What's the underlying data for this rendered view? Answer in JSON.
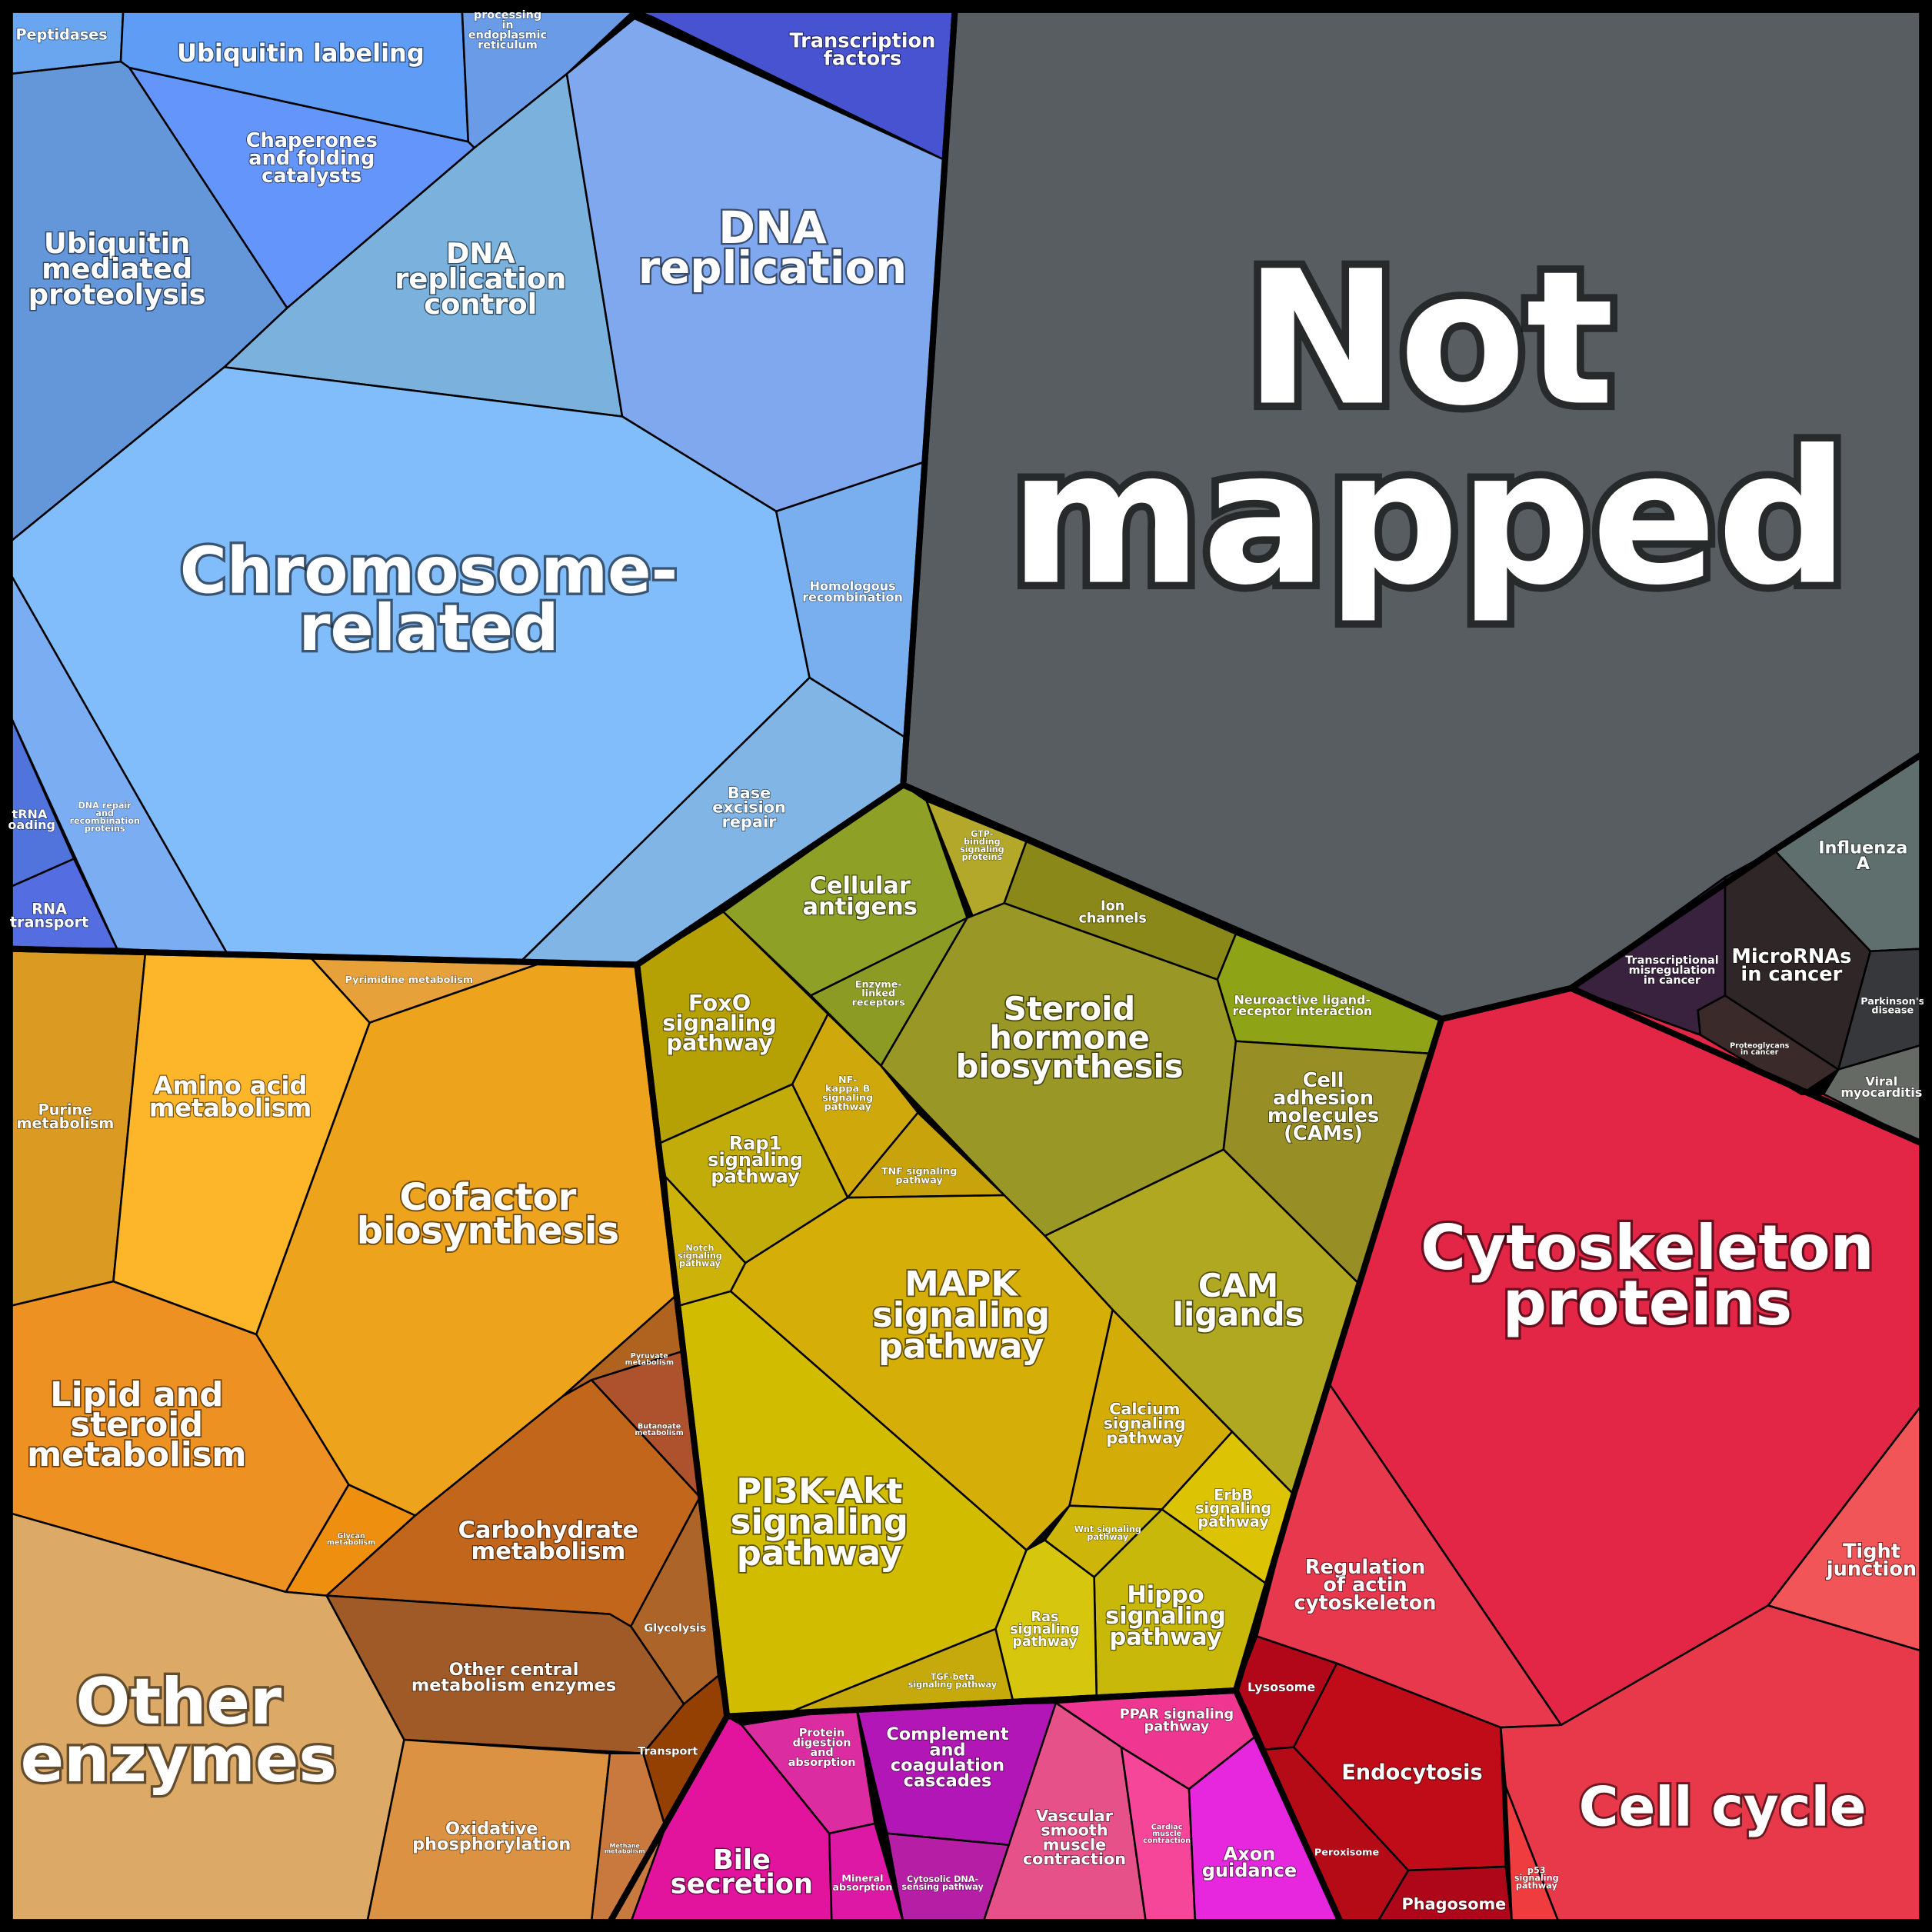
{
  "groups": [
    {
      "id": "blue",
      "regions": [
        {
          "id": "peptidases",
          "label": [
            "Peptidases"
          ],
          "color": "#6aa6f0"
        },
        {
          "id": "ubiquitin-labeling",
          "label": [
            "Ubiquitin labeling"
          ],
          "color": "#5e9cf5"
        },
        {
          "id": "protein-processing-er",
          "label": [
            "Protein",
            "processing",
            "in",
            "endoplasmic",
            "reticulum"
          ],
          "color": "#6a9be6"
        },
        {
          "id": "transcription-factors",
          "label": [
            "Transcription",
            "factors"
          ],
          "color": "#4753d1"
        },
        {
          "id": "chaperones",
          "label": [
            "Chaperones",
            "and folding",
            "catalysts"
          ],
          "color": "#6495fb"
        },
        {
          "id": "ubiquitin-mediated-proteolysis",
          "label": [
            "Ubiquitin",
            "mediated",
            "proteolysis"
          ],
          "color": "#6497da"
        },
        {
          "id": "dna-replication-control",
          "label": [
            "DNA",
            "replication",
            "control"
          ],
          "color": "#7ab2dd"
        },
        {
          "id": "dna-replication",
          "label": [
            "DNA",
            "replication"
          ],
          "color": "#80a8ee"
        },
        {
          "id": "chromosome-related",
          "label": [
            "Chromosome-",
            "related"
          ],
          "color": "#82bdfb"
        },
        {
          "id": "homologous-recombination",
          "label": [
            "Homologous",
            "recombination"
          ],
          "color": "#79afee"
        },
        {
          "id": "base-excision-repair",
          "label": [
            "Base",
            "excision",
            "repair"
          ],
          "color": "#80b5e6"
        },
        {
          "id": "dna-repair-recombination",
          "label": [
            "DNA repair",
            "and",
            "recombination",
            "proteins"
          ],
          "color": "#7badf2"
        },
        {
          "id": "trna-loading",
          "label": [
            "tRNA",
            "loading"
          ],
          "color": "#5073dc"
        },
        {
          "id": "rna-transport",
          "label": [
            "RNA",
            "transport"
          ],
          "color": "#546de0"
        }
      ]
    },
    {
      "id": "grey",
      "regions": [
        {
          "id": "not-mapped",
          "label": [
            "Not",
            "mapped"
          ],
          "color": "#575d61"
        }
      ]
    },
    {
      "id": "disease",
      "regions": [
        {
          "id": "influenza-a",
          "label": [
            "Influenza",
            "A"
          ],
          "color": "#5f6f6d"
        },
        {
          "id": "micrornas-in-cancer",
          "label": [
            "MicroRNAs",
            "in cancer"
          ],
          "color": "#2f2627"
        },
        {
          "id": "transcriptional-misregulation",
          "label": [
            "Transcriptional",
            "misregulation",
            "in cancer"
          ],
          "color": "#38223d"
        },
        {
          "id": "proteoglycans-in-cancer",
          "label": [
            "Proteoglycans",
            "in cancer"
          ],
          "color": "#3b2a2a"
        },
        {
          "id": "parkinsons-disease",
          "label": [
            "Parkinson's",
            "disease"
          ],
          "color": "#36383c"
        },
        {
          "id": "viral-myocarditis",
          "label": [
            "Viral",
            "myocarditis"
          ],
          "color": "#656a65"
        }
      ]
    },
    {
      "id": "red",
      "regions": [
        {
          "id": "cytoskeleton-proteins",
          "label": [
            "Cytoskeleton",
            "proteins"
          ],
          "color": "#e32546"
        },
        {
          "id": "tight-junction",
          "label": [
            "Tight",
            "junction"
          ],
          "color": "#f25558"
        },
        {
          "id": "regulation-actin-cytoskeleton",
          "label": [
            "Regulation",
            "of actin",
            "cytoskeleton"
          ],
          "color": "#e8384e"
        },
        {
          "id": "lysosome",
          "label": [
            "Lysosome"
          ],
          "color": "#b10719"
        },
        {
          "id": "endocytosis",
          "label": [
            "Endocytosis"
          ],
          "color": "#c00c19"
        },
        {
          "id": "peroxisome",
          "label": [
            "Peroxisome"
          ],
          "color": "#b50b17"
        },
        {
          "id": "phagosome",
          "label": [
            "Phagosome"
          ],
          "color": "#ae0719"
        },
        {
          "id": "cell-cycle",
          "label": [
            "Cell cycle"
          ],
          "color": "#e8394a"
        },
        {
          "id": "p53-signaling",
          "label": [
            "p53",
            "signaling",
            "pathway"
          ],
          "color": "#ef3c3e"
        }
      ]
    },
    {
      "id": "pink",
      "regions": [
        {
          "id": "bile-secretion",
          "label": [
            "Bile",
            "secretion"
          ],
          "color": "#e2139d"
        },
        {
          "id": "protein-digestion-absorption",
          "label": [
            "Protein",
            "digestion",
            "and",
            "absorption"
          ],
          "color": "#db2ca1"
        },
        {
          "id": "mineral-absorption",
          "label": [
            "Mineral",
            "absorption"
          ],
          "color": "#dc18a4"
        },
        {
          "id": "complement-coagulation",
          "label": [
            "Complement",
            "and",
            "coagulation",
            "cascades"
          ],
          "color": "#b316b7"
        },
        {
          "id": "cytosolic-dna-sensing",
          "label": [
            "Cytosolic DNA-",
            "sensing pathway"
          ],
          "color": "#b61fa5"
        },
        {
          "id": "vascular-smooth-muscle",
          "label": [
            "Vascular",
            "smooth",
            "muscle",
            "contraction"
          ],
          "color": "#e55188"
        },
        {
          "id": "ppar-signaling",
          "label": [
            "PPAR signaling",
            "pathway"
          ],
          "color": "#ef3792"
        },
        {
          "id": "cardiac-muscle-contraction",
          "label": [
            "Cardiac",
            "muscle",
            "contraction"
          ],
          "color": "#f6469a"
        },
        {
          "id": "axon-guidance",
          "label": [
            "Axon",
            "guidance"
          ],
          "color": "#e627dd"
        }
      ]
    },
    {
      "id": "yellow",
      "regions": [
        {
          "id": "cellular-antigens",
          "label": [
            "Cellular",
            "antigens"
          ],
          "color": "#8fa027"
        },
        {
          "id": "gtp-binding-signaling",
          "label": [
            "GTP-",
            "binding",
            "signaling",
            "proteins"
          ],
          "color": "#b3a82a"
        },
        {
          "id": "ion-channels",
          "label": [
            "Ion",
            "channels"
          ],
          "color": "#8a8818"
        },
        {
          "id": "neuroactive-ligand",
          "label": [
            "Neuroactive ligand-",
            "receptor interaction"
          ],
          "color": "#8ea316"
        },
        {
          "id": "enzyme-linked-receptors",
          "label": [
            "Enzyme-",
            "linked",
            "receptors"
          ],
          "color": "#8c9b24"
        },
        {
          "id": "steroid-hormone-biosynthesis",
          "label": [
            "Steroid",
            "hormone",
            "biosynthesis"
          ],
          "color": "#999826"
        },
        {
          "id": "cell-adhesion-molecules",
          "label": [
            "Cell",
            "adhesion",
            "molecules",
            "(CAMs)"
          ],
          "color": "#978f26"
        },
        {
          "id": "cam-ligands",
          "label": [
            "CAM",
            "ligands"
          ],
          "color": "#b0a820"
        },
        {
          "id": "foxo-signaling",
          "label": [
            "FoxO",
            "signaling",
            "pathway"
          ],
          "color": "#b6a104"
        },
        {
          "id": "nf-kappa-b-signaling",
          "label": [
            "NF-",
            "kappa B",
            "signaling",
            "pathway"
          ],
          "color": "#cfa80b"
        },
        {
          "id": "rap1-signaling",
          "label": [
            "Rap1",
            "signaling",
            "pathway"
          ],
          "color": "#c2ac09"
        },
        {
          "id": "tnf-signaling",
          "label": [
            "TNF signaling",
            "pathway"
          ],
          "color": "#c8a30c"
        },
        {
          "id": "notch-signaling",
          "label": [
            "Notch",
            "signaling",
            "pathway"
          ],
          "color": "#cdb209"
        },
        {
          "id": "mapk-signaling",
          "label": [
            "MAPK",
            "signaling",
            "pathway"
          ],
          "color": "#d5ae08"
        },
        {
          "id": "calcium-signaling",
          "label": [
            "Calcium",
            "signaling",
            "pathway"
          ],
          "color": "#d4ac07"
        },
        {
          "id": "erbb-signaling",
          "label": [
            "ErbB",
            "signaling",
            "pathway"
          ],
          "color": "#dcc405"
        },
        {
          "id": "wnt-signaling",
          "label": [
            "Wnt signaling",
            "pathway"
          ],
          "color": "#cdb609"
        },
        {
          "id": "hippo-signaling",
          "label": [
            "Hippo",
            "signaling",
            "pathway"
          ],
          "color": "#c7b809"
        },
        {
          "id": "ras-signaling",
          "label": [
            "Ras",
            "signaling",
            "pathway"
          ],
          "color": "#d7c60e"
        },
        {
          "id": "tgf-beta-signaling",
          "label": [
            "TGF-beta",
            "signaling pathway"
          ],
          "color": "#c6a90a"
        },
        {
          "id": "pi3k-akt-signaling",
          "label": [
            "PI3K-Akt",
            "signaling",
            "pathway"
          ],
          "color": "#d1bc00"
        }
      ]
    },
    {
      "id": "orange",
      "regions": [
        {
          "id": "purine-metabolism",
          "label": [
            "Purine",
            "metabolism"
          ],
          "color": "#db9a22"
        },
        {
          "id": "amino-acid-metabolism",
          "label": [
            "Amino acid",
            "metabolism"
          ],
          "color": "#fdb62a"
        },
        {
          "id": "pyrimidine-metabolism",
          "label": [
            "Pyrimidine metabolism"
          ],
          "color": "#e6a13a"
        },
        {
          "id": "cofactor-biosynthesis",
          "label": [
            "Cofactor",
            "biosynthesis"
          ],
          "color": "#eda31b"
        },
        {
          "id": "lipid-steroid-metabolism",
          "label": [
            "Lipid and",
            "steroid",
            "metabolism"
          ],
          "color": "#ed9122"
        },
        {
          "id": "glycan-metabolism",
          "label": [
            "Glycan",
            "metabolism"
          ],
          "color": "#ee8f10"
        },
        {
          "id": "pyruvate-metabolism",
          "label": [
            "Pyruvate",
            "metabolism"
          ],
          "color": "#b0621f"
        },
        {
          "id": "butanoate-metabolism",
          "label": [
            "Butanoate",
            "metabolism"
          ],
          "color": "#ad522c"
        },
        {
          "id": "carbohydrate-metabolism",
          "label": [
            "Carbohydrate",
            "metabolism"
          ],
          "color": "#c2661c"
        },
        {
          "id": "glycolysis",
          "label": [
            "Glycolysis"
          ],
          "color": "#ad6428"
        },
        {
          "id": "other-central-metabolism",
          "label": [
            "Other central",
            "metabolism enzymes"
          ],
          "color": "#a05a27"
        },
        {
          "id": "transport",
          "label": [
            "Transport"
          ],
          "color": "#944003"
        },
        {
          "id": "other-enzymes",
          "label": [
            "Other",
            "enzymes"
          ],
          "color": "#dcaa66"
        },
        {
          "id": "oxidative-phosphorylation",
          "label": [
            "Oxidative",
            "phosphorylation"
          ],
          "color": "#db9242"
        },
        {
          "id": "methane-metabolism",
          "label": [
            "Methane",
            "metabolism"
          ],
          "color": "#c9793d"
        }
      ]
    }
  ]
}
